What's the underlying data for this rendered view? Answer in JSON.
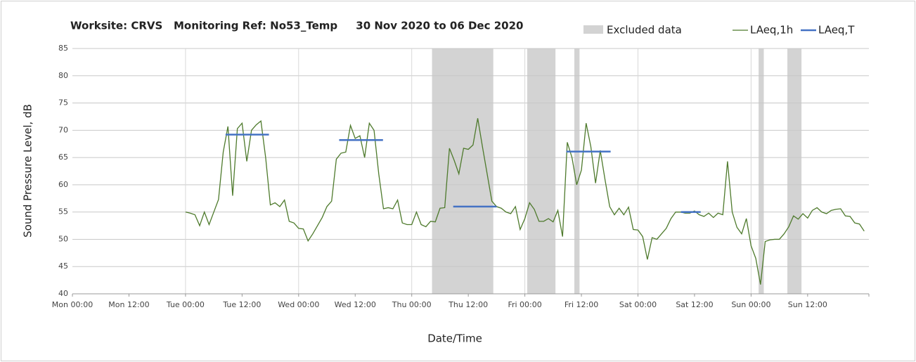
{
  "chart_data": {
    "type": "line",
    "title": "Worksite: CRVS   Monitoring Ref: No53_Temp     30 Nov 2020 to 06 Dec 2020",
    "xlabel": "Date/Time",
    "ylabel": "Sound Pressure Level, dB",
    "xlim": [
      0,
      169
    ],
    "ylim": [
      40,
      85
    ],
    "yticks": [
      40,
      45,
      50,
      55,
      60,
      65,
      70,
      75,
      80,
      85
    ],
    "xticks": [
      {
        "value": 0,
        "label": "Mon 00:00"
      },
      {
        "value": 12,
        "label": "Mon 12:00"
      },
      {
        "value": 24,
        "label": "Tue 00:00"
      },
      {
        "value": 36,
        "label": "Tue 12:00"
      },
      {
        "value": 48,
        "label": "Wed 00:00"
      },
      {
        "value": 60,
        "label": "Wed 12:00"
      },
      {
        "value": 72,
        "label": "Thu 00:00"
      },
      {
        "value": 84,
        "label": "Thu 12:00"
      },
      {
        "value": 96,
        "label": "Fri 00:00"
      },
      {
        "value": 108,
        "label": "Fri 12:00"
      },
      {
        "value": 120,
        "label": "Sat 00:00"
      },
      {
        "value": 132,
        "label": "Sat 12:00"
      },
      {
        "value": 144,
        "label": "Sun 00:00"
      },
      {
        "value": 156,
        "label": "Sun 12:00"
      }
    ],
    "grid": true,
    "legend": "top-right",
    "excluded": {
      "name": "Excluded data",
      "color": "#d3d3d3",
      "ranges": [
        [
          76.3,
          89.3
        ],
        [
          96.5,
          102.5
        ],
        [
          106.5,
          107.6
        ],
        [
          145.6,
          146.7
        ],
        [
          151.7,
          154.7
        ]
      ]
    },
    "series": [
      {
        "name": "LAeq,1h",
        "color": "#4e7a2c",
        "x": [
          24,
          25,
          26,
          27,
          28,
          29,
          30,
          31,
          32,
          33,
          34,
          35,
          36,
          37,
          38,
          39,
          40,
          41,
          42,
          43,
          44,
          45,
          46,
          47,
          48,
          49,
          50,
          51,
          52,
          53,
          54,
          55,
          56,
          57,
          58,
          59,
          60,
          61,
          62,
          63,
          64,
          65,
          66,
          67,
          68,
          69,
          70,
          71,
          72,
          73,
          74,
          75,
          76,
          77,
          78,
          79,
          80,
          81,
          82,
          83,
          84,
          85,
          86,
          87,
          88,
          89,
          90,
          91,
          92,
          93,
          94,
          95,
          96,
          97,
          98,
          99,
          100,
          101,
          102,
          103,
          104,
          105,
          106,
          107,
          108,
          109,
          110,
          111,
          112,
          113,
          114,
          115,
          116,
          117,
          118,
          119,
          120,
          121,
          122,
          123,
          124,
          125,
          126,
          127,
          128,
          129,
          130,
          131,
          132,
          133,
          134,
          135,
          136,
          137,
          138,
          139,
          140,
          141,
          142,
          143,
          144,
          145,
          146,
          147,
          148,
          149,
          150,
          151,
          152,
          153,
          154,
          155,
          156,
          157,
          158,
          159,
          160,
          161,
          162,
          163,
          164,
          165,
          166,
          167,
          168
        ],
        "values": [
          55.0,
          54.8,
          54.5,
          52.5,
          55.0,
          52.7,
          55.0,
          57.3,
          66.0,
          70.7,
          58.0,
          70.3,
          71.3,
          64.3,
          70.0,
          71.0,
          71.7,
          65.0,
          56.3,
          56.7,
          56.0,
          57.2,
          53.3,
          53.0,
          52.0,
          51.9,
          49.7,
          51.0,
          52.5,
          54.0,
          56.0,
          57.0,
          64.7,
          65.8,
          66.0,
          70.9,
          68.5,
          69.0,
          65.0,
          71.3,
          70.0,
          62.0,
          55.6,
          55.8,
          55.6,
          57.2,
          53.0,
          52.7,
          52.7,
          55.0,
          52.7,
          52.3,
          53.3,
          53.2,
          55.7,
          55.8,
          66.7,
          64.5,
          62.0,
          66.7,
          66.5,
          67.3,
          72.2,
          67.0,
          62.0,
          57.0,
          56.0,
          55.7,
          55.0,
          54.7,
          56.0,
          51.8,
          53.8,
          56.7,
          55.5,
          53.3,
          53.3,
          53.8,
          53.2,
          55.3,
          50.5,
          67.8,
          65.0,
          60.0,
          62.7,
          71.3,
          67.0,
          60.3,
          66.3,
          61.0,
          56.0,
          54.5,
          55.7,
          54.5,
          55.9,
          51.8,
          51.7,
          50.5,
          46.3,
          50.3,
          50.0,
          51.0,
          52.0,
          53.8,
          55.0,
          55.0,
          54.8,
          54.8,
          55.2,
          54.5,
          54.2,
          54.8,
          54.0,
          54.8,
          54.5,
          64.3,
          55.0,
          52.2,
          51.0,
          53.8,
          48.8,
          46.5,
          41.7,
          49.6,
          49.9,
          50.0,
          50.0,
          51.0,
          52.3,
          54.3,
          53.7,
          54.7,
          53.9,
          55.3,
          55.8,
          55.0,
          54.7,
          55.3,
          55.5,
          55.6,
          54.3,
          54.2,
          53.0,
          52.8,
          51.5
        ]
      },
      {
        "name": "LAeq,T",
        "color": "#4472c4",
        "segments": [
          {
            "start": 32.5,
            "end": 41.7,
            "value": 69.2
          },
          {
            "start": 56.6,
            "end": 65.9,
            "value": 68.2
          },
          {
            "start": 80.8,
            "end": 90.0,
            "value": 56.0
          },
          {
            "start": 104.8,
            "end": 114.2,
            "value": 66.1
          },
          {
            "start": 129.1,
            "end": 133.3,
            "value": 55.0
          }
        ]
      }
    ]
  }
}
